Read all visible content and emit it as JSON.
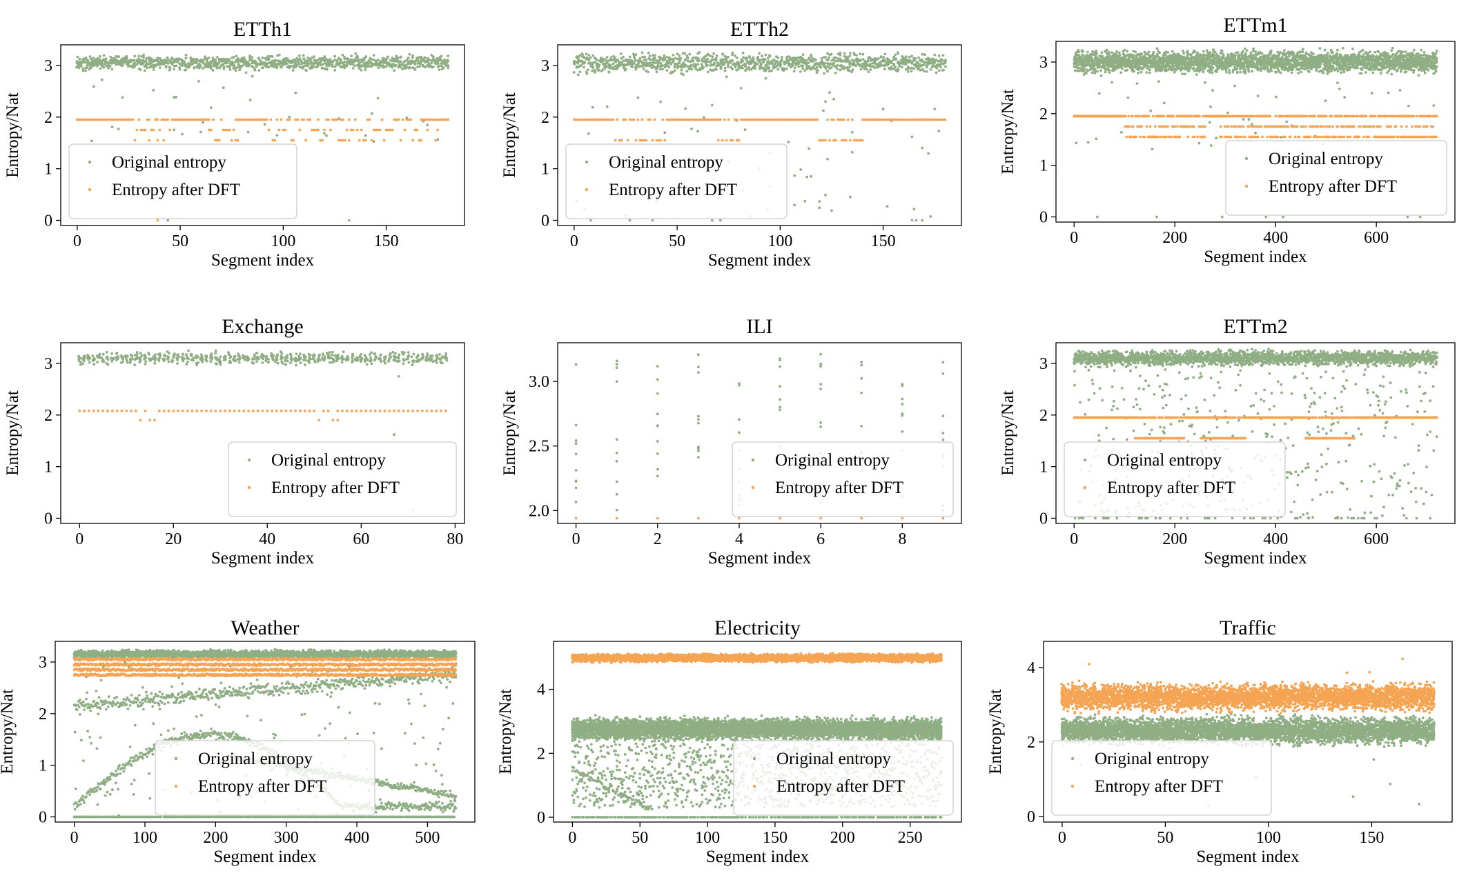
{
  "legend_labels": {
    "original": "Original entropy",
    "dft": "Entropy after DFT"
  },
  "colors": {
    "original": "#8fae84",
    "dft": "#f5a453",
    "axes": "#000000",
    "legend_border": "#d3d3d3"
  },
  "chart_data": [
    {
      "id": "etth1",
      "type": "scatter",
      "title": "ETTh1",
      "xlabel": "Segment index",
      "ylabel": "Entropy/Nat",
      "xlim": [
        -8,
        188
      ],
      "ylim": [
        -0.1,
        3.4
      ],
      "xticks": [
        0,
        50,
        100,
        150
      ],
      "xtick_labels": [
        "0",
        "50",
        "100",
        "150"
      ],
      "yticks": [
        0,
        1,
        2,
        3
      ],
      "ytick_labels": [
        "0",
        "1",
        "2",
        "3"
      ],
      "legend": "lower-left",
      "series": [
        {
          "name": "Original entropy",
          "pattern": "band",
          "n": 181,
          "center": 3.05,
          "spread": 0.12,
          "per_x": 6,
          "outlier_rate": 0.07,
          "outlier_low": 1.5,
          "outlier_high": 2.9,
          "zero_rate": 0.01
        },
        {
          "name": "Entropy after DFT",
          "pattern": "levels",
          "n": 181,
          "base": 1.95,
          "alt": [
            1.55,
            1.75
          ],
          "alt_ranges": [
            [
              28,
              45
            ],
            [
              64,
              78
            ],
            [
              93,
              115
            ],
            [
              115,
              140
            ],
            [
              143,
              175
            ]
          ],
          "zero_points": [
            39
          ]
        }
      ]
    },
    {
      "id": "etth2",
      "type": "scatter",
      "title": "ETTh2",
      "xlabel": "Segment index",
      "ylabel": "Entropy/Nat",
      "xlim": [
        -8,
        188
      ],
      "ylim": [
        -0.1,
        3.4
      ],
      "xticks": [
        0,
        50,
        100,
        150
      ],
      "xtick_labels": [
        "0",
        "50",
        "100",
        "150"
      ],
      "yticks": [
        0,
        1,
        2,
        3
      ],
      "ytick_labels": [
        "0",
        "1",
        "2",
        "3"
      ],
      "legend": "lower-left",
      "series": [
        {
          "name": "Original entropy",
          "pattern": "band",
          "n": 181,
          "center": 3.05,
          "spread": 0.15,
          "per_x": 6,
          "outlier_rate": 0.2,
          "outlier_low": 0.0,
          "outlier_high": 2.9,
          "zero_rate": 0.05
        },
        {
          "name": "Entropy after DFT",
          "pattern": "levels",
          "n": 181,
          "base": 1.95,
          "alt": [
            1.55
          ],
          "alt_ranges": [
            [
              20,
              45
            ],
            [
              70,
              80
            ],
            [
              115,
              140
            ]
          ],
          "zero_points": []
        }
      ]
    },
    {
      "id": "ettm1",
      "type": "scatter",
      "title": "ETTm1",
      "xlabel": "Segment index",
      "ylabel": "Entropy/Nat",
      "xlim": [
        -36,
        756
      ],
      "ylim": [
        -0.1,
        3.4
      ],
      "xticks": [
        0,
        200,
        400,
        600
      ],
      "xtick_labels": [
        "0",
        "200",
        "400",
        "600"
      ],
      "yticks": [
        0,
        1,
        2,
        3
      ],
      "ytick_labels": [
        "0",
        "1",
        "2",
        "3"
      ],
      "legend": "lower-right",
      "series": [
        {
          "name": "Original entropy",
          "pattern": "band",
          "n": 721,
          "center": 3.0,
          "spread": 0.18,
          "per_x": 4,
          "outlier_rate": 0.03,
          "outlier_low": 1.3,
          "outlier_high": 2.7,
          "zero_rate": 0.005
        },
        {
          "name": "Entropy after DFT",
          "pattern": "levels",
          "n": 721,
          "base": 1.95,
          "alt": [
            1.55,
            1.75
          ],
          "alt_ranges": [
            [
              100,
              260
            ],
            [
              290,
              720
            ]
          ],
          "zero_points": []
        }
      ]
    },
    {
      "id": "exchange",
      "type": "scatter",
      "title": "Exchange",
      "xlabel": "Segment index",
      "ylabel": "Entropy/Nat",
      "xlim": [
        -4,
        82
      ],
      "ylim": [
        -0.1,
        3.4
      ],
      "xticks": [
        0,
        20,
        40,
        60,
        80
      ],
      "xtick_labels": [
        "0",
        "20",
        "40",
        "60",
        "80"
      ],
      "yticks": [
        0,
        1,
        2,
        3
      ],
      "ytick_labels": [
        "0",
        "1",
        "2",
        "3"
      ],
      "legend": "lower-right",
      "series": [
        {
          "name": "Original entropy",
          "pattern": "band",
          "n": 79,
          "center": 3.1,
          "spread": 0.1,
          "per_x": 8,
          "outlier_rate": 0.03,
          "outlier_low": 0.0,
          "outlier_high": 2.8,
          "zero_rate": 0.02
        },
        {
          "name": "Entropy after DFT",
          "pattern": "levels",
          "n": 79,
          "base": 2.08,
          "alt": [
            1.9
          ],
          "alt_ranges": [
            [
              13,
              17
            ],
            [
              50,
              55
            ]
          ],
          "zero_points": []
        }
      ]
    },
    {
      "id": "ili",
      "type": "scatter",
      "title": "ILI",
      "xlabel": "Segment index",
      "ylabel": "Entropy/Nat",
      "xlim": [
        -0.45,
        9.45
      ],
      "ylim": [
        1.9,
        3.3
      ],
      "xticks": [
        0,
        2,
        4,
        6,
        8
      ],
      "xtick_labels": [
        "0",
        "2",
        "4",
        "6",
        "8"
      ],
      "yticks": [
        2.0,
        2.5,
        3.0
      ],
      "ytick_labels": [
        "2.0",
        "2.5",
        "3.0"
      ],
      "legend": "lower-right",
      "series": [
        {
          "name": "Original entropy",
          "pattern": "columns",
          "n": 10,
          "per_x": 10,
          "low": 2.0,
          "high": 3.25
        },
        {
          "name": "Entropy after DFT",
          "pattern": "levels",
          "n": 10,
          "base": 1.94,
          "alt": [],
          "alt_ranges": [],
          "zero_points": []
        }
      ]
    },
    {
      "id": "ettm2",
      "type": "scatter",
      "title": "ETTm2",
      "xlabel": "Segment index",
      "ylabel": "Entropy/Nat",
      "xlim": [
        -36,
        756
      ],
      "ylim": [
        -0.1,
        3.4
      ],
      "xticks": [
        0,
        200,
        400,
        600
      ],
      "xtick_labels": [
        "0",
        "200",
        "400",
        "600"
      ],
      "yticks": [
        0,
        1,
        2,
        3
      ],
      "ytick_labels": [
        "0",
        "1",
        "2",
        "3"
      ],
      "legend": "lower-left",
      "series": [
        {
          "name": "Original entropy",
          "pattern": "band",
          "n": 721,
          "center": 3.1,
          "spread": 0.12,
          "per_x": 3,
          "outlier_rate": 0.3,
          "outlier_low": 0.0,
          "outlier_high": 2.9,
          "zero_rate": 0.08
        },
        {
          "name": "Entropy after DFT",
          "pattern": "levels",
          "n": 721,
          "base": 1.95,
          "alt": [
            1.55
          ],
          "alt_ranges": [
            [
              120,
              220
            ],
            [
              250,
              340
            ],
            [
              460,
              560
            ]
          ],
          "zero_points": []
        }
      ]
    },
    {
      "id": "weather",
      "type": "scatter",
      "title": "Weather",
      "xlabel": "Segment index",
      "ylabel": "Entropy/Nat",
      "xlim": [
        -27,
        567
      ],
      "ylim": [
        -0.1,
        3.4
      ],
      "xticks": [
        0,
        100,
        200,
        300,
        400,
        500
      ],
      "xtick_labels": [
        "0",
        "100",
        "200",
        "300",
        "400",
        "500"
      ],
      "yticks": [
        0,
        1,
        2,
        3
      ],
      "ytick_labels": [
        "0",
        "1",
        "2",
        "3"
      ],
      "legend": "lower-center",
      "series": [
        {
          "name": "Original entropy",
          "pattern": "weather",
          "n": 541,
          "center": 3.15,
          "spread": 0.1,
          "per_x": 5
        },
        {
          "name": "Entropy after DFT",
          "pattern": "multilevel",
          "n": 541,
          "levels": [
            2.75,
            2.85,
            2.95,
            3.05
          ]
        }
      ]
    },
    {
      "id": "electricity",
      "type": "scatter",
      "title": "Electricity",
      "xlabel": "Segment index",
      "ylabel": "Entropy/Nat",
      "xlim": [
        -14,
        288
      ],
      "ylim": [
        -0.15,
        5.5
      ],
      "xticks": [
        0,
        50,
        100,
        150,
        200,
        250
      ],
      "xtick_labels": [
        "0",
        "50",
        "100",
        "150",
        "200",
        "250"
      ],
      "yticks": [
        0,
        2,
        4
      ],
      "ytick_labels": [
        "0",
        "2",
        "4"
      ],
      "legend": "lower-right",
      "series": [
        {
          "name": "Original entropy",
          "pattern": "electricity",
          "n": 274,
          "per_x": 22
        },
        {
          "name": "Entropy after DFT",
          "pattern": "band",
          "n": 274,
          "center": 4.98,
          "spread": 0.1,
          "per_x": 16,
          "outlier_rate": 0,
          "outlier_low": 4.6,
          "outlier_high": 5.2,
          "zero_rate": 0
        }
      ]
    },
    {
      "id": "traffic",
      "type": "scatter",
      "title": "Traffic",
      "xlabel": "Segment index",
      "ylabel": "Entropy/Nat",
      "xlim": [
        -9,
        189
      ],
      "ylim": [
        -0.15,
        4.7
      ],
      "xticks": [
        0,
        50,
        100,
        150
      ],
      "xtick_labels": [
        "0",
        "50",
        "100",
        "150"
      ],
      "yticks": [
        0,
        2,
        4
      ],
      "ytick_labels": [
        "0",
        "2",
        "4"
      ],
      "legend": "lower-left",
      "series": [
        {
          "name": "Original entropy",
          "pattern": "band",
          "n": 181,
          "center": 2.3,
          "spread": 0.3,
          "per_x": 26,
          "outlier_rate": 0.02,
          "outlier_low": 0.1,
          "outlier_high": 1.6,
          "zero_rate": 0.005
        },
        {
          "name": "Entropy after DFT",
          "pattern": "band",
          "n": 181,
          "center": 3.2,
          "spread": 0.3,
          "per_x": 22,
          "outlier_rate": 0.01,
          "outlier_low": 3.8,
          "outlier_high": 4.4,
          "zero_rate": 0.002
        }
      ]
    }
  ]
}
